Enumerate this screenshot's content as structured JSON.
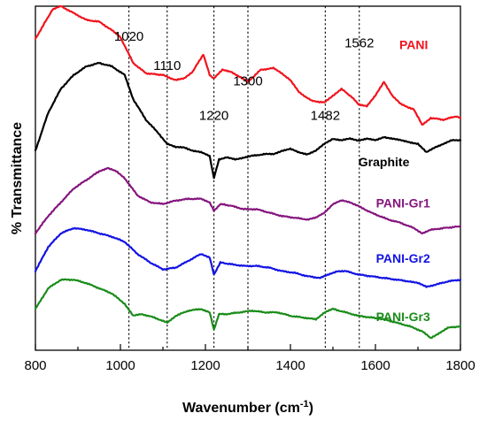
{
  "chart_data": {
    "type": "line",
    "xlabel": "Wavenumber (cm",
    "xlabel_sup": "-1",
    "xlabel_end": ")",
    "ylabel": "% Transmittance",
    "xlim": [
      800,
      1800
    ],
    "ylim": [
      0,
      100
    ],
    "x_ticks": [
      "800",
      "1000",
      "1200",
      "1400",
      "1600",
      "1800"
    ],
    "y_ticks_shown": false,
    "grid": false,
    "reference_lines": [
      1020,
      1110,
      1220,
      1300,
      1482,
      1562
    ],
    "peak_labels": [
      {
        "text": "1020",
        "x": 1020,
        "y": 90
      },
      {
        "text": "1110",
        "x": 1110,
        "y": 81.5
      },
      {
        "text": "1220",
        "x": 1220,
        "y": 67
      },
      {
        "text": "1300",
        "x": 1300,
        "y": 77
      },
      {
        "text": "1482",
        "x": 1482,
        "y": 67
      },
      {
        "text": "1562",
        "x": 1562,
        "y": 88
      }
    ],
    "series": [
      {
        "name": "PANI",
        "color": "#f0141e",
        "label_at": {
          "x": 1690,
          "y": 87.5
        },
        "points": [
          [
            800,
            90.5
          ],
          [
            840,
            99
          ],
          [
            860,
            100
          ],
          [
            890,
            98
          ],
          [
            920,
            96
          ],
          [
            950,
            95.5
          ],
          [
            980,
            93
          ],
          [
            1000,
            91
          ],
          [
            1030,
            83.5
          ],
          [
            1060,
            80.5
          ],
          [
            1100,
            80
          ],
          [
            1130,
            78.5
          ],
          [
            1150,
            79
          ],
          [
            1170,
            81
          ],
          [
            1195,
            86
          ],
          [
            1210,
            80
          ],
          [
            1220,
            79
          ],
          [
            1240,
            81.5
          ],
          [
            1260,
            81
          ],
          [
            1280,
            79.5
          ],
          [
            1300,
            78
          ],
          [
            1330,
            81.5
          ],
          [
            1360,
            82
          ],
          [
            1380,
            80.5
          ],
          [
            1400,
            78.5
          ],
          [
            1420,
            75
          ],
          [
            1450,
            72.5
          ],
          [
            1480,
            72
          ],
          [
            1500,
            74
          ],
          [
            1520,
            76
          ],
          [
            1545,
            73.5
          ],
          [
            1560,
            71.5
          ],
          [
            1580,
            71
          ],
          [
            1600,
            74
          ],
          [
            1620,
            78
          ],
          [
            1640,
            74
          ],
          [
            1660,
            71.5
          ],
          [
            1690,
            70
          ],
          [
            1710,
            65.5
          ],
          [
            1730,
            67.5
          ],
          [
            1760,
            67
          ],
          [
            1790,
            68
          ],
          [
            1800,
            67.5
          ]
        ]
      },
      {
        "name": "Graphite",
        "color": "#000000",
        "label_at": {
          "x": 1620,
          "y": 53.5
        },
        "points": [
          [
            800,
            58
          ],
          [
            830,
            69
          ],
          [
            860,
            76
          ],
          [
            890,
            80
          ],
          [
            920,
            82.5
          ],
          [
            950,
            83.5
          ],
          [
            980,
            82.5
          ],
          [
            1010,
            80
          ],
          [
            1030,
            73
          ],
          [
            1060,
            67
          ],
          [
            1090,
            63
          ],
          [
            1110,
            60
          ],
          [
            1130,
            59
          ],
          [
            1150,
            59
          ],
          [
            1170,
            58
          ],
          [
            1190,
            57.5
          ],
          [
            1210,
            56.5
          ],
          [
            1220,
            50
          ],
          [
            1232,
            55.5
          ],
          [
            1250,
            56
          ],
          [
            1270,
            55.5
          ],
          [
            1290,
            56
          ],
          [
            1310,
            56.5
          ],
          [
            1340,
            57
          ],
          [
            1360,
            57
          ],
          [
            1380,
            58
          ],
          [
            1400,
            58.5
          ],
          [
            1420,
            57.5
          ],
          [
            1440,
            57
          ],
          [
            1460,
            58
          ],
          [
            1480,
            60
          ],
          [
            1500,
            61.5
          ],
          [
            1520,
            61
          ],
          [
            1540,
            61.5
          ],
          [
            1560,
            61
          ],
          [
            1580,
            61.5
          ],
          [
            1600,
            61
          ],
          [
            1620,
            62
          ],
          [
            1640,
            61.5
          ],
          [
            1660,
            61
          ],
          [
            1680,
            60.5
          ],
          [
            1700,
            60
          ],
          [
            1720,
            57.5
          ],
          [
            1740,
            59
          ],
          [
            1760,
            60
          ],
          [
            1780,
            61
          ],
          [
            1800,
            61
          ]
        ]
      },
      {
        "name": "PANI-Gr1",
        "color": "#85167e",
        "label_at": {
          "x": 1665,
          "y": 41.5
        },
        "points": [
          [
            800,
            34
          ],
          [
            830,
            39
          ],
          [
            860,
            43
          ],
          [
            890,
            47
          ],
          [
            920,
            49.5
          ],
          [
            950,
            52
          ],
          [
            970,
            53
          ],
          [
            990,
            52
          ],
          [
            1010,
            50
          ],
          [
            1040,
            45
          ],
          [
            1070,
            43
          ],
          [
            1100,
            42.5
          ],
          [
            1130,
            43.5
          ],
          [
            1160,
            44
          ],
          [
            1190,
            44
          ],
          [
            1210,
            43
          ],
          [
            1220,
            40.5
          ],
          [
            1235,
            42.5
          ],
          [
            1260,
            42
          ],
          [
            1290,
            41
          ],
          [
            1320,
            41
          ],
          [
            1350,
            40
          ],
          [
            1380,
            39
          ],
          [
            1410,
            38.5
          ],
          [
            1440,
            38
          ],
          [
            1460,
            38.5
          ],
          [
            1480,
            40
          ],
          [
            1500,
            42.5
          ],
          [
            1520,
            43.5
          ],
          [
            1540,
            43
          ],
          [
            1560,
            42
          ],
          [
            1580,
            40.5
          ],
          [
            1600,
            39.5
          ],
          [
            1630,
            38
          ],
          [
            1660,
            37
          ],
          [
            1690,
            35.5
          ],
          [
            1710,
            34
          ],
          [
            1730,
            35
          ],
          [
            1760,
            35.5
          ],
          [
            1800,
            36
          ]
        ]
      },
      {
        "name": "PANI-Gr2",
        "color": "#1313e3",
        "label_at": {
          "x": 1665,
          "y": 25.5
        },
        "points": [
          [
            800,
            23
          ],
          [
            830,
            30
          ],
          [
            860,
            34
          ],
          [
            890,
            35.5
          ],
          [
            920,
            35
          ],
          [
            950,
            34
          ],
          [
            980,
            33
          ],
          [
            1010,
            31.5
          ],
          [
            1040,
            28
          ],
          [
            1070,
            25.5
          ],
          [
            1100,
            23.5
          ],
          [
            1130,
            24
          ],
          [
            1160,
            26
          ],
          [
            1190,
            28
          ],
          [
            1210,
            27
          ],
          [
            1220,
            22
          ],
          [
            1235,
            25.5
          ],
          [
            1260,
            25
          ],
          [
            1290,
            24.5
          ],
          [
            1320,
            24.5
          ],
          [
            1350,
            24
          ],
          [
            1380,
            23
          ],
          [
            1410,
            22.5
          ],
          [
            1440,
            21.5
          ],
          [
            1470,
            21
          ],
          [
            1490,
            22
          ],
          [
            1510,
            23
          ],
          [
            1530,
            23
          ],
          [
            1560,
            22
          ],
          [
            1590,
            21.5
          ],
          [
            1620,
            21
          ],
          [
            1650,
            20.5
          ],
          [
            1680,
            20
          ],
          [
            1700,
            19.5
          ],
          [
            1720,
            18.5
          ],
          [
            1740,
            19
          ],
          [
            1770,
            20
          ],
          [
            1800,
            20.5
          ]
        ]
      },
      {
        "name": "PANI-Gr3",
        "color": "#1a8c1a",
        "label_at": {
          "x": 1665,
          "y": 8.5
        },
        "points": [
          [
            800,
            12
          ],
          [
            830,
            18
          ],
          [
            860,
            20.5
          ],
          [
            890,
            20.5
          ],
          [
            920,
            19.5
          ],
          [
            950,
            18
          ],
          [
            980,
            16.5
          ],
          [
            1010,
            13.5
          ],
          [
            1030,
            10
          ],
          [
            1050,
            10.5
          ],
          [
            1080,
            9.5
          ],
          [
            1110,
            8
          ],
          [
            1130,
            10
          ],
          [
            1160,
            11.5
          ],
          [
            1190,
            12
          ],
          [
            1210,
            11
          ],
          [
            1220,
            6
          ],
          [
            1232,
            10.5
          ],
          [
            1250,
            10.5
          ],
          [
            1280,
            11
          ],
          [
            1310,
            11.5
          ],
          [
            1340,
            11
          ],
          [
            1370,
            11
          ],
          [
            1400,
            10
          ],
          [
            1430,
            9.5
          ],
          [
            1460,
            9
          ],
          [
            1480,
            11
          ],
          [
            1500,
            12
          ],
          [
            1530,
            11
          ],
          [
            1560,
            10
          ],
          [
            1590,
            9.5
          ],
          [
            1620,
            9
          ],
          [
            1650,
            8
          ],
          [
            1680,
            7
          ],
          [
            1710,
            5.5
          ],
          [
            1730,
            3.5
          ],
          [
            1750,
            5
          ],
          [
            1770,
            6.5
          ],
          [
            1800,
            7
          ]
        ]
      }
    ]
  }
}
